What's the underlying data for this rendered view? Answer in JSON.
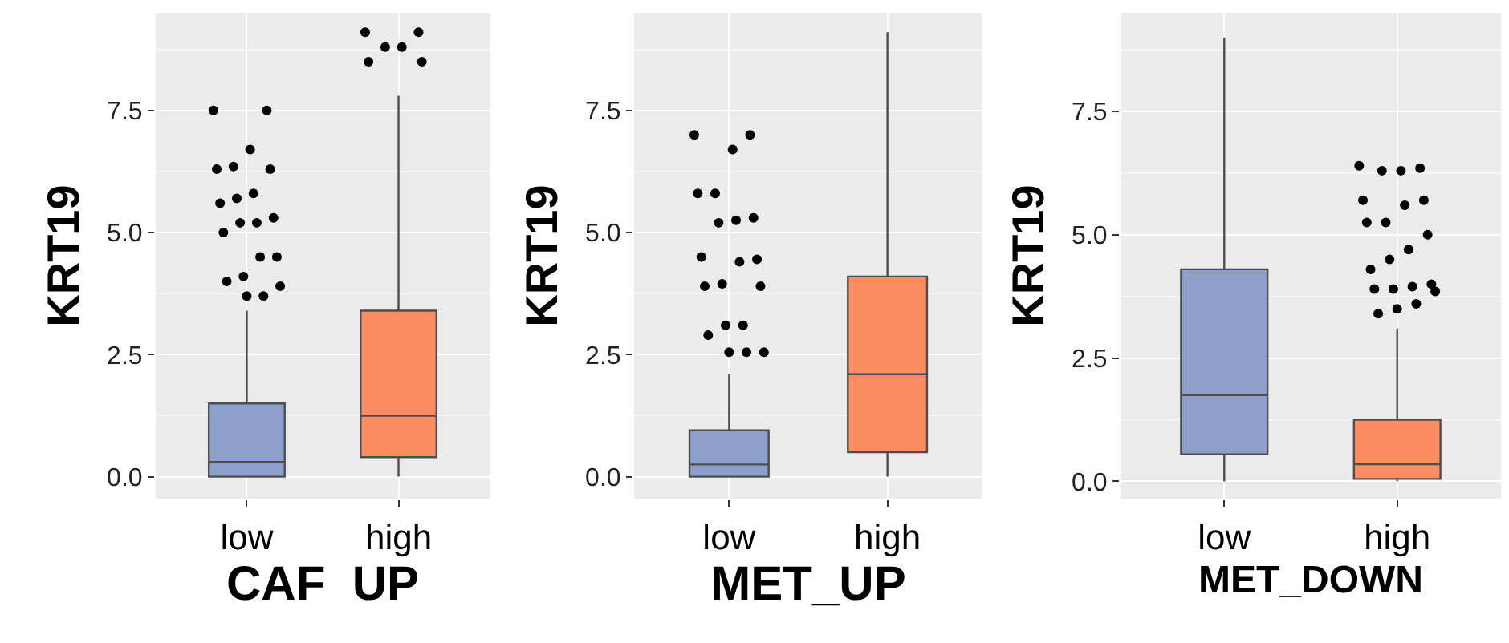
{
  "chart_data": [
    {
      "type": "box",
      "xlabel": "CAF  UP",
      "ylabel": "KRT19",
      "categories": [
        "low",
        "high"
      ],
      "colors": [
        "#8da0cb",
        "#fc8d62"
      ],
      "ylim": [
        -0.45,
        9.5
      ],
      "yticks": [
        {
          "value": 0,
          "label": "0.0"
        },
        {
          "value": 2.5,
          "label": "2.5"
        },
        {
          "value": 5,
          "label": "5.0"
        },
        {
          "value": 7.5,
          "label": "7.5"
        }
      ],
      "grid": true,
      "boxes": [
        {
          "low": 0,
          "q1": 0,
          "median": 0.3,
          "q3": 1.5,
          "high": 3.4,
          "outliers": [
            7.5,
            7.5,
            6.7,
            6.35,
            6.3,
            6.3,
            5.8,
            5.7,
            5.6,
            5.3,
            5.2,
            5.2,
            5.0,
            4.5,
            4.5,
            4.1,
            4.0,
            3.9,
            3.7,
            3.7
          ]
        },
        {
          "low": 0,
          "q1": 0.4,
          "median": 1.25,
          "q3": 3.4,
          "high": 7.8,
          "outliers": [
            9.1,
            9.1,
            8.8,
            8.8,
            8.5,
            8.5
          ]
        }
      ]
    },
    {
      "type": "box",
      "xlabel": "MET_UP",
      "ylabel": "KRT19",
      "categories": [
        "low",
        "high"
      ],
      "colors": [
        "#8da0cb",
        "#fc8d62"
      ],
      "ylim": [
        -0.45,
        9.5
      ],
      "yticks": [
        {
          "value": 0,
          "label": "0.0"
        },
        {
          "value": 2.5,
          "label": "2.5"
        },
        {
          "value": 5,
          "label": "5.0"
        },
        {
          "value": 7.5,
          "label": "7.5"
        }
      ],
      "grid": true,
      "boxes": [
        {
          "low": 0,
          "q1": 0,
          "median": 0.25,
          "q3": 0.95,
          "high": 2.1,
          "outliers": [
            7.0,
            7.0,
            6.7,
            5.8,
            5.8,
            5.3,
            5.25,
            5.2,
            4.5,
            4.45,
            4.4,
            3.95,
            3.9,
            3.9,
            3.1,
            3.1,
            2.9,
            2.55,
            2.55,
            2.55
          ]
        },
        {
          "low": 0,
          "q1": 0.5,
          "median": 2.1,
          "q3": 4.1,
          "high": 9.1
        }
      ]
    },
    {
      "type": "box",
      "xlabel": "MET_DOWN",
      "ylabel": "KRT19",
      "categories": [
        "low",
        "high"
      ],
      "colors": [
        "#8da0cb",
        "#fc8d62"
      ],
      "ylim": [
        -0.35,
        9.5
      ],
      "yticks": [
        {
          "value": 0,
          "label": "0.0"
        },
        {
          "value": 2.5,
          "label": "2.5"
        },
        {
          "value": 5,
          "label": "5.0"
        },
        {
          "value": 7.5,
          "label": "7.5"
        }
      ],
      "grid": true,
      "boxes": [
        {
          "low": 0,
          "q1": 0.55,
          "median": 1.75,
          "q3": 4.3,
          "high": 9.0
        },
        {
          "low": 0,
          "q1": 0.05,
          "median": 0.35,
          "q3": 1.25,
          "high": 3.1,
          "outliers": [
            6.4,
            6.35,
            6.3,
            6.3,
            5.7,
            5.7,
            5.6,
            5.25,
            5.25,
            5.0,
            4.7,
            4.5,
            4.3,
            4.0,
            3.95,
            3.9,
            3.9,
            3.85,
            3.6,
            3.5,
            3.4
          ]
        }
      ]
    }
  ]
}
